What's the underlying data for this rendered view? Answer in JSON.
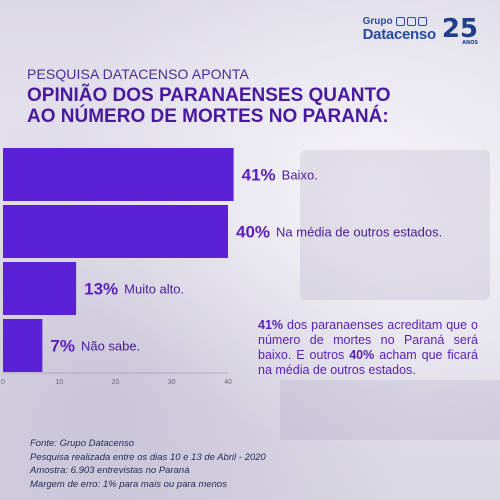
{
  "header": {
    "subtitle": "PESQUISA DATACENSO APONTA",
    "title": "OPINIÃO DOS PARANAENSES  QUANTO\nAO NÚMERO DE MORTES NO PARANÁ:"
  },
  "logo": {
    "grupo": "Grupo",
    "datacenso": "Datacenso",
    "anniversary": "25",
    "anos": "ANOS"
  },
  "chart_data": {
    "type": "bar",
    "orientation": "horizontal",
    "categories": [
      "Baixo.",
      "Na média de outros estados.",
      "Muito alto.",
      "Não sabe."
    ],
    "values": [
      41,
      40,
      13,
      7
    ],
    "value_labels": [
      "41%",
      "40%",
      "13%",
      "7%"
    ],
    "xlim": [
      0,
      40
    ],
    "xticks": [
      0,
      10,
      20,
      30,
      40
    ],
    "bar_color": "#5b21d6",
    "label_color": "#5b21b6"
  },
  "note": {
    "part1_bold": "41%",
    "part1_text": " dos paranaenses acreditam que o número de mortes no Paraná será baixo. E outros ",
    "part2_bold": "40%",
    "part2_text": " acham que ficará na média de outros estados."
  },
  "footer": {
    "source": "Fonte: Grupo Datacenso",
    "period": "Pesquisa realizada entre os dias 10 e 13 de Abril - 2020",
    "sample": "Amostra: 6.903 entrevistas no Paraná",
    "margin": "Margem de erro: 1% para mais ou para menos"
  }
}
